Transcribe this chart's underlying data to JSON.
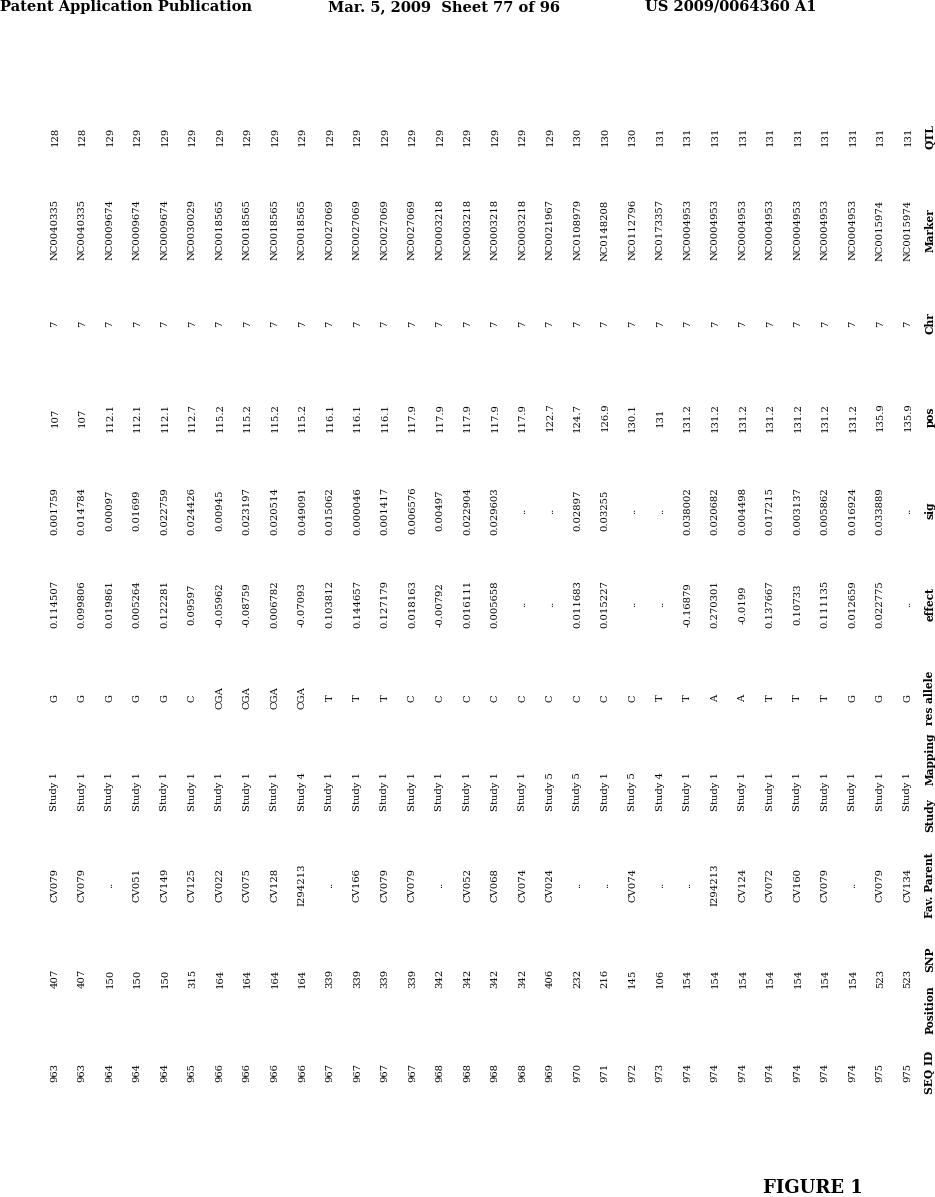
{
  "header_left": "Patent Application Publication",
  "header_mid": "Mar. 5, 2009  Sheet 77 of 96",
  "header_right": "US 2009/0064360 A1",
  "figure_label": "FIGURE 1",
  "columns": [
    "QTL",
    "Marker",
    "Chr",
    "pos",
    "sig",
    "effect",
    "res allele",
    "Mapping Study",
    "Fav. Parent",
    "SNP Position",
    "SEQ ID"
  ],
  "col_headers_display": [
    "QTL",
    "Marker",
    "Chr",
    "pos",
    "sig",
    "effect",
    "res allele",
    "Mapping\nStudy",
    "Fav. Parent",
    "SNP\nPosition",
    "SEQ ID"
  ],
  "rows": [
    [
      "128",
      "NC0040335",
      "7",
      "107",
      "0.001759",
      "0.114507",
      "G",
      "Study 1",
      "CV079",
      "407",
      "963"
    ],
    [
      "128",
      "NC0040335",
      "7",
      "107",
      "0.014784",
      "0.099806",
      "G",
      "Study 1",
      "CV079",
      "407",
      "963"
    ],
    [
      "129",
      "NC0009674",
      "7",
      "112.1",
      "0.00097",
      "0.019861",
      "G",
      "Study 1",
      "..",
      "150",
      "964"
    ],
    [
      "129",
      "NC0009674",
      "7",
      "112.1",
      "0.01699",
      "0.005264",
      "G",
      "Study 1",
      "CV051",
      "150",
      "964"
    ],
    [
      "129",
      "NC0009674",
      "7",
      "112.1",
      "0.022759",
      "0.122281",
      "G",
      "Study 1",
      "CV149",
      "150",
      "964"
    ],
    [
      "129",
      "NC0030029",
      "7",
      "112.7",
      "0.024426",
      "0.09597",
      "C",
      "Study 1",
      "CV125",
      "315",
      "965"
    ],
    [
      "129",
      "NC0018565",
      "7",
      "115.2",
      "0.00945",
      "-0.05962",
      "CGA",
      "Study 1",
      "CV022",
      "164",
      "966"
    ],
    [
      "129",
      "NC0018565",
      "7",
      "115.2",
      "0.023197",
      "-0.08759",
      "CGA",
      "Study 1",
      "CV075",
      "164",
      "966"
    ],
    [
      "129",
      "NC0018565",
      "7",
      "115.2",
      "0.020514",
      "0.006782",
      "CGA",
      "Study 1",
      "CV128",
      "164",
      "966"
    ],
    [
      "129",
      "NC0018565",
      "7",
      "115.2",
      "0.049091",
      "-0.07093",
      "CGA",
      "Study 4",
      "I294213",
      "164",
      "966"
    ],
    [
      "129",
      "NC0027069",
      "7",
      "116.1",
      "0.015062",
      "0.103812",
      "T",
      "Study 1",
      "..",
      "339",
      "967"
    ],
    [
      "129",
      "NC0027069",
      "7",
      "116.1",
      "0.000046",
      "0.144657",
      "T",
      "Study 1",
      "CV166",
      "339",
      "967"
    ],
    [
      "129",
      "NC0027069",
      "7",
      "116.1",
      "0.001417",
      "0.127179",
      "T",
      "Study 1",
      "CV079",
      "339",
      "967"
    ],
    [
      "129",
      "NC0027069",
      "7",
      "117.9",
      "0.006576",
      "0.018163",
      "C",
      "Study 1",
      "CV079",
      "339",
      "967"
    ],
    [
      "129",
      "NC0003218",
      "7",
      "117.9",
      "0.00497",
      "-0.00792",
      "C",
      "Study 1",
      "..",
      "342",
      "968"
    ],
    [
      "129",
      "NC0003218",
      "7",
      "117.9",
      "0.022904",
      "0.016111",
      "C",
      "Study 1",
      "CV052",
      "342",
      "968"
    ],
    [
      "129",
      "NC0003218",
      "7",
      "117.9",
      "0.029603",
      "0.005658",
      "C",
      "Study 1",
      "CV068",
      "342",
      "968"
    ],
    [
      "129",
      "NC0003218",
      "7",
      "117.9",
      "..",
      "..",
      "C",
      "Study 1",
      "CV074",
      "342",
      "968"
    ],
    [
      "129",
      "NC0021967",
      "7",
      "122.7",
      "..",
      "..",
      "C",
      "Study 5",
      "CV024",
      "406",
      "969"
    ],
    [
      "130",
      "NC0108979",
      "7",
      "124.7",
      "0.02897",
      "0.011683",
      "C",
      "Study 5",
      "..",
      "232",
      "970"
    ],
    [
      "130",
      "NC0148208",
      "7",
      "126.9",
      "0.03255",
      "0.015227",
      "C",
      "Study 1",
      "..",
      "216",
      "971"
    ],
    [
      "130",
      "NC0112796",
      "7",
      "130.1",
      "..",
      "..",
      "C",
      "Study 5",
      "CV074",
      "145",
      "972"
    ],
    [
      "131",
      "NC0173357",
      "7",
      "131",
      "..",
      "..",
      "T",
      "Study 4",
      "..",
      "106",
      "973"
    ],
    [
      "131",
      "NC0004953",
      "7",
      "131.2",
      "0.038002",
      "-0.16879",
      "T",
      "Study 1",
      "..",
      "154",
      "974"
    ],
    [
      "131",
      "NC0004953",
      "7",
      "131.2",
      "0.020682",
      "0.270301",
      "A",
      "Study 1",
      "I294213",
      "154",
      "974"
    ],
    [
      "131",
      "NC0004953",
      "7",
      "131.2",
      "0.004498",
      "-0.0199",
      "A",
      "Study 1",
      "CV124",
      "154",
      "974"
    ],
    [
      "131",
      "NC0004953",
      "7",
      "131.2",
      "0.017215",
      "0.137667",
      "T",
      "Study 1",
      "CV072",
      "154",
      "974"
    ],
    [
      "131",
      "NC0004953",
      "7",
      "131.2",
      "0.003137",
      "0.10733",
      "T",
      "Study 1",
      "CV160",
      "154",
      "974"
    ],
    [
      "131",
      "NC0004953",
      "7",
      "131.2",
      "0.005862",
      "0.111135",
      "T",
      "Study 1",
      "CV079",
      "154",
      "974"
    ],
    [
      "131",
      "NC0004953",
      "7",
      "131.2",
      "0.016924",
      "0.012659",
      "G",
      "Study 1",
      "..",
      "154",
      "974"
    ],
    [
      "131",
      "NC0015974",
      "7",
      "135.9",
      "0.033889",
      "0.022775",
      "G",
      "Study 1",
      "CV079",
      "523",
      "975"
    ],
    [
      "131",
      "NC0015974",
      "7",
      "135.9",
      "..",
      "..",
      "G",
      "Study 1",
      "CV134",
      "523",
      "975"
    ]
  ],
  "background_color": "#ffffff",
  "text_color": "#000000",
  "font_size": 7.2,
  "header_font_size": 10.5
}
